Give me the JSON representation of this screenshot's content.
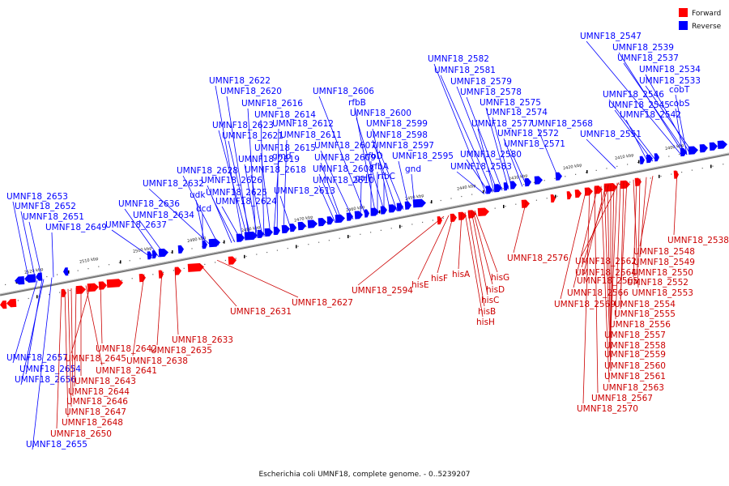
{
  "caption": "Escherichia coli UMNF18, complete genome. - 0..5239207",
  "legend": [
    {
      "label": "Forward",
      "color": "#ff0000"
    },
    {
      "label": "Reverse",
      "color": "#0000ff"
    }
  ],
  "ticks": [
    "2400 kbp",
    "2410 kbp",
    "2420 kbp",
    "2430 kbp",
    "2440 kbp",
    "2450 kbp",
    "2460 kbp",
    "2470 kbp",
    "2480 kbp",
    "2490 kbp",
    "2500 kbp",
    "2510 kbp",
    "2520 kbp"
  ],
  "reverse_genes": [
    "UMNF18_2547",
    "UMNF18_2539",
    "UMNF18_2537",
    "UMNF18_2534",
    "UMNF18_2533",
    "UMNF18_2546",
    "cobT",
    "UMNF18_2545",
    "cobS",
    "UMNF18_2542",
    "UMNF18_2568",
    "UMNF18_2551",
    "UMNF18_2582",
    "UMNF18_2581",
    "UMNF18_2579",
    "UMNF18_2578",
    "UMNF18_2575",
    "UMNF18_2574",
    "UMNF18_2577",
    "UMNF18_2572",
    "UMNF18_2571",
    "UMNF18_2580",
    "UMNF18_2583",
    "UMNF18_2606",
    "rfbB",
    "UMNF18_2600",
    "UMNF18_2599",
    "UMNF18_2598",
    "UMNF18_2597",
    "UMNF18_2595",
    "UMNF18_2607",
    "rfbD",
    "UMNF18_2609",
    "rfbA",
    "UMNF18_2608",
    "rfbC",
    "gnd",
    "galF",
    "UMNF18_2610",
    "UMNF18_2622",
    "UMNF18_2620",
    "UMNF18_2616",
    "UMNF18_2614",
    "UMNF18_2623",
    "UMNF18_2612",
    "UMNF18_2621",
    "UMNF18_2611",
    "UMNF18_2615",
    "UMNF18_2619",
    "gmd",
    "UMNF18_2618",
    "UMNF18_2628",
    "UMNF18_2626",
    "UMNF18_2632",
    "UMNF18_2625",
    "UMNF18_2613",
    "udk",
    "UMNF18_2624",
    "dcd",
    "UMNF18_2636",
    "UMNF18_2634",
    "UMNF18_2637",
    "UMNF18_2653",
    "UMNF18_2652",
    "UMNF18_2651",
    "UMNF18_2649",
    "UMNF18_2657",
    "UMNF18_2654",
    "UMNF18_2656",
    "UMNF18_2655"
  ],
  "forward_genes": [
    "UMNF18_2538",
    "UMNF18_2548",
    "UMNF18_2549",
    "UMNF18_2550",
    "UMNF18_2562",
    "UMNF18_2564",
    "UMNF18_2565",
    "UMNF18_2552",
    "UMNF18_2566",
    "UMNF18_2553",
    "UMNF18_2569",
    "UMNF18_2554",
    "UMNF18_2555",
    "UMNF18_2556",
    "UMNF18_2557",
    "UMNF18_2558",
    "UMNF18_2559",
    "UMNF18_2560",
    "UMNF18_2561",
    "UMNF18_2563",
    "UMNF18_2567",
    "UMNF18_2570",
    "UMNF18_2576",
    "hisG",
    "hisD",
    "hisC",
    "hisB",
    "hisH",
    "hisA",
    "hisF",
    "hisE",
    "UMNF18_2594",
    "UMNF18_2627",
    "UMNF18_2631",
    "UMNF18_2633",
    "UMNF18_2635",
    "UMNF18_2638",
    "UMNF18_2642",
    "UMNF18_2645",
    "UMNF18_2641",
    "UMNF18_2643",
    "UMNF18_2644",
    "UMNF18_2646",
    "UMNF18_2647",
    "UMNF18_2648",
    "UMNF18_2650"
  ]
}
